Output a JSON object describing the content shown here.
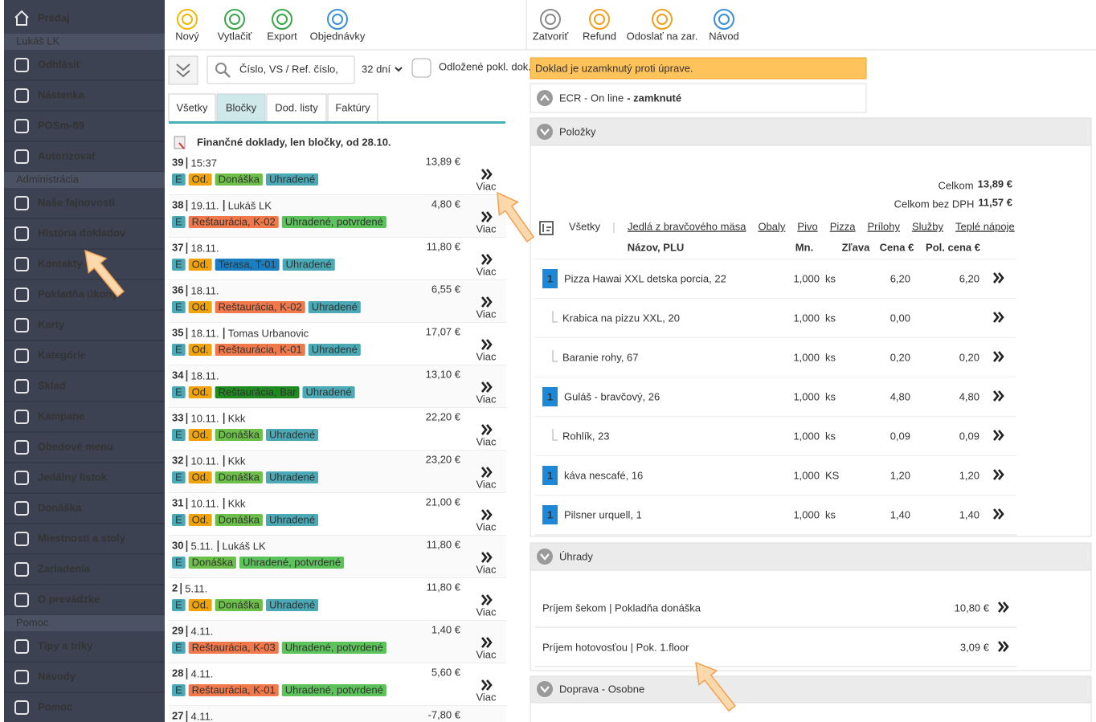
{
  "sidebar": {
    "top": "Predaj",
    "sections": [
      {
        "title": "Lukáš LK",
        "items": [
          "Odhlásiť",
          "Nástenka",
          "POSm-89",
          "Autorizovať"
        ]
      },
      {
        "title": "Administrácia",
        "items": [
          "Naše fajnovosti",
          "História dokladov",
          "Kontakty",
          "Pokladňa úkony",
          "Karty",
          "Kategórie",
          "Sklad",
          "Kampane",
          "Obedové menu",
          "Jedálny lístok",
          "Donáška",
          "Miestnosti a stoly",
          "Zariadenia",
          "O prevádzke"
        ]
      },
      {
        "title": "Pomoc",
        "items": [
          "Tipy a triky",
          "Návody",
          "Pomoc"
        ]
      }
    ]
  },
  "toolbar": {
    "left": [
      {
        "label": "Nový",
        "color": "#f2b705"
      },
      {
        "label": "Vytlačiť",
        "color": "#3aa64a"
      },
      {
        "label": "Export",
        "color": "#3aa64a"
      },
      {
        "label": "Objednávky",
        "color": "#3a8fd8"
      }
    ],
    "right": [
      {
        "label": "Zatvoriť",
        "color": "#8a8a8a"
      },
      {
        "label": "Refund",
        "color": "#f0a020"
      },
      {
        "label": "Odoslať na zar.",
        "color": "#f0a020"
      },
      {
        "label": "Návod",
        "color": "#3a8fd8"
      }
    ]
  },
  "search": {
    "placeholder": "Číslo, VS / Ref. číslo,",
    "period": "32 dní",
    "postponed": "Odložené pokl. dok."
  },
  "tabs": {
    "items": [
      "Všetky",
      "Bločky",
      "Dod. listy",
      "Faktúry"
    ],
    "active": 1
  },
  "filter_note": "Finančné doklady, len bločky, od 28.10.",
  "more_label": "Viac",
  "documents": [
    {
      "number": "39",
      "time": "15:37",
      "amount": "13,89 €",
      "tags": [
        {
          "text": "E",
          "color": "#4aa9b5"
        },
        {
          "text": "Od.",
          "color": "#f0a30a"
        },
        {
          "text": "Donáška",
          "color": "#6cc04a"
        },
        {
          "text": "Uhradené",
          "color": "#4aa9b5"
        }
      ]
    },
    {
      "number": "38",
      "time": "19.11.",
      "person": "Lukáš LK",
      "amount": "4,80 €",
      "tags": [
        {
          "text": "E",
          "color": "#4aa9b5"
        },
        {
          "text": "Reštaurácia, K-02",
          "color": "#f0784a"
        },
        {
          "text": "Uhradené, potvrdené",
          "color": "#5cc35b"
        }
      ]
    },
    {
      "number": "37",
      "time": "18.11.",
      "amount": "11,80 €",
      "tags": [
        {
          "text": "E",
          "color": "#4aa9b5"
        },
        {
          "text": "Od.",
          "color": "#f0a30a"
        },
        {
          "text": "Terasa, T-01",
          "color": "#1a7fc1"
        },
        {
          "text": "Uhradené",
          "color": "#4aa9b5"
        }
      ]
    },
    {
      "number": "36",
      "time": "18.11.",
      "amount": "6,55 €",
      "tags": [
        {
          "text": "E",
          "color": "#4aa9b5"
        },
        {
          "text": "Od.",
          "color": "#f0a30a"
        },
        {
          "text": "Reštaurácia, K-02",
          "color": "#f0784a"
        },
        {
          "text": "Uhradené",
          "color": "#4aa9b5"
        }
      ]
    },
    {
      "number": "35",
      "time": "18.11.",
      "person": "Tomas Urbanovic",
      "amount": "17,07 €",
      "tags": [
        {
          "text": "E",
          "color": "#4aa9b5"
        },
        {
          "text": "Od.",
          "color": "#f0a30a"
        },
        {
          "text": "Reštaurácia, K-01",
          "color": "#f0784a"
        },
        {
          "text": "Uhradené",
          "color": "#4aa9b5"
        }
      ]
    },
    {
      "number": "34",
      "time": "18.11.",
      "amount": "13,10 €",
      "tags": [
        {
          "text": "E",
          "color": "#4aa9b5"
        },
        {
          "text": "Od.",
          "color": "#f0a30a"
        },
        {
          "text": "Reštaurácia, Bar",
          "color": "#1f8a1f"
        },
        {
          "text": "Uhradené",
          "color": "#4aa9b5"
        }
      ]
    },
    {
      "number": "33",
      "time": "10.11.",
      "person": "Kkk",
      "amount": "22,20 €",
      "tags": [
        {
          "text": "E",
          "color": "#4aa9b5"
        },
        {
          "text": "Od.",
          "color": "#f0a30a"
        },
        {
          "text": "Donáška",
          "color": "#6cc04a"
        },
        {
          "text": "Uhradené",
          "color": "#4aa9b5"
        }
      ]
    },
    {
      "number": "32",
      "time": "10.11.",
      "person": "Kkk",
      "amount": "23,20 €",
      "tags": [
        {
          "text": "E",
          "color": "#4aa9b5"
        },
        {
          "text": "Od.",
          "color": "#f0a30a"
        },
        {
          "text": "Donáška",
          "color": "#6cc04a"
        },
        {
          "text": "Uhradené",
          "color": "#4aa9b5"
        }
      ]
    },
    {
      "number": "31",
      "time": "10.11.",
      "person": "Kkk",
      "amount": "21,00 €",
      "tags": [
        {
          "text": "E",
          "color": "#4aa9b5"
        },
        {
          "text": "Od.",
          "color": "#f0a30a"
        },
        {
          "text": "Donáška",
          "color": "#6cc04a"
        },
        {
          "text": "Uhradené",
          "color": "#4aa9b5"
        }
      ]
    },
    {
      "number": "30",
      "time": "5.11.",
      "person": "Lukáš LK",
      "amount": "11,80 €",
      "tags": [
        {
          "text": "E",
          "color": "#4aa9b5"
        },
        {
          "text": "Donáška",
          "color": "#6cc04a"
        },
        {
          "text": "Uhradené, potvrdené",
          "color": "#5cc35b"
        }
      ]
    },
    {
      "number": "2",
      "time": "5.11.",
      "amount": "11,80 €",
      "tags": [
        {
          "text": "E",
          "color": "#4aa9b5"
        },
        {
          "text": "Od.",
          "color": "#f0a30a"
        },
        {
          "text": "Donáška",
          "color": "#6cc04a"
        },
        {
          "text": "Uhradené",
          "color": "#4aa9b5"
        }
      ]
    },
    {
      "number": "29",
      "time": "4.11.",
      "amount": "1,40 €",
      "tags": [
        {
          "text": "E",
          "color": "#4aa9b5"
        },
        {
          "text": "Reštaurácia, K-03",
          "color": "#f0784a"
        },
        {
          "text": "Uhradené, potvrdené",
          "color": "#5cc35b"
        }
      ]
    },
    {
      "number": "28",
      "time": "4.11.",
      "amount": "5,60 €",
      "tags": [
        {
          "text": "E",
          "color": "#4aa9b5"
        },
        {
          "text": "Reštaurácia, K-01",
          "color": "#f0784a"
        },
        {
          "text": "Uhradené, potvrdené",
          "color": "#5cc35b"
        }
      ]
    },
    {
      "number": "27",
      "time": "4.11.",
      "amount": "-7,80 €",
      "tags": []
    }
  ],
  "detail": {
    "lock_notice": "Doklad je uzamknutý proti úprave.",
    "ecr": "ECR - On line",
    "ecr_status": "- zamknuté",
    "items_title": "Položky",
    "total_label": "Celkom",
    "total": "13,89 €",
    "net_label": "Celkom bez DPH",
    "net": "11,57 €",
    "categories": [
      "Všetky",
      "Jedlá z bravčového mäsa",
      "Obaly",
      "Pivo",
      "Pizza",
      "Prílohy",
      "Služby",
      "Teplé nápoje"
    ],
    "active_category": 0,
    "columns": [
      "Názov, PLU",
      "Mn.",
      "Zľava",
      "Cena €",
      "Pol. cena €"
    ],
    "items": [
      {
        "badge": "1",
        "name": "Pizza Hawai XXL detska porcia, 22",
        "qty": "1,000",
        "unit": "ks",
        "price": "6,20",
        "total": "6,20"
      },
      {
        "name": "Krabica na pizzu XXL, 20",
        "qty": "1,000",
        "unit": "ks",
        "price": "0,00"
      },
      {
        "name": "Baranie rohy, 67",
        "qty": "1,000",
        "unit": "ks",
        "price": "0,20",
        "total": "0,20"
      },
      {
        "badge": "1",
        "name": "Guláš - bravčový, 26",
        "qty": "1,000",
        "unit": "ks",
        "price": "4,80",
        "total": "4,80"
      },
      {
        "name": "Rohlík, 23",
        "qty": "1,000",
        "unit": "ks",
        "price": "0,09",
        "total": "0,09"
      },
      {
        "badge": "1",
        "name": "káva nescafé, 16",
        "qty": "1,000",
        "unit": "KS",
        "price": "1,20",
        "total": "1,20"
      },
      {
        "badge": "1",
        "name": "Pilsner urquell, 1",
        "qty": "1,000",
        "unit": "ks",
        "price": "1,40",
        "total": "1,40"
      }
    ],
    "payments_title": "Úhrady",
    "payments": [
      {
        "label": "Príjem šekom | Pokladňa donáška",
        "amount": "10,80 €"
      },
      {
        "label": "Príjem hotovosťou | Pok. 1.floor",
        "amount": "3,09 €"
      }
    ],
    "delivery_title": "Doprava - Osobne"
  }
}
